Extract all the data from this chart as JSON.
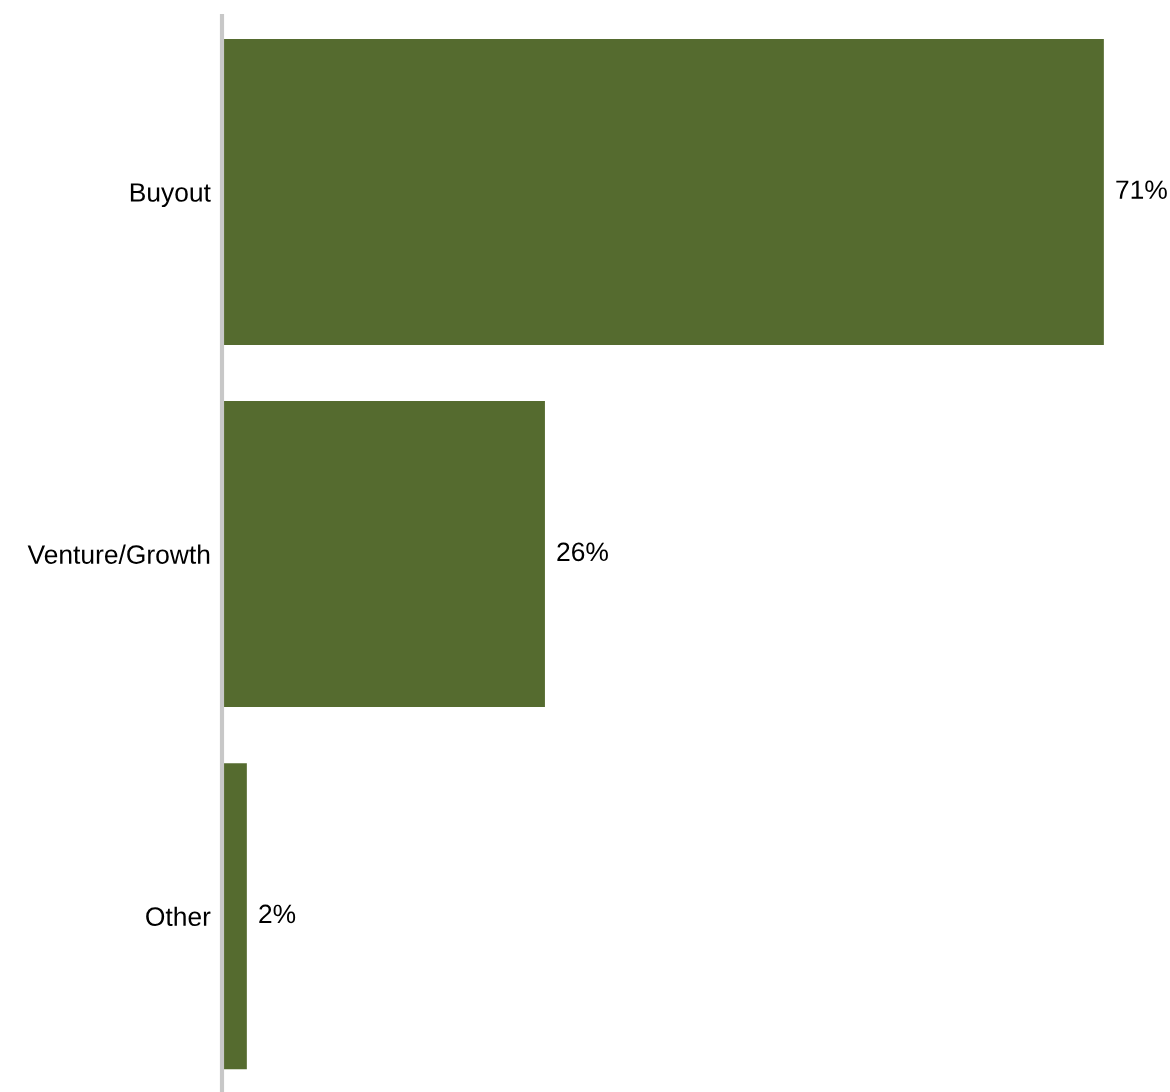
{
  "chart_data": {
    "type": "bar",
    "orientation": "horizontal",
    "categories": [
      "Buyout",
      "Venture/Growth",
      "Other"
    ],
    "values": [
      71,
      26,
      2
    ],
    "value_labels": [
      "71%",
      "26%",
      "2%"
    ],
    "color": "#556b2f",
    "grid": false,
    "legend": false
  }
}
